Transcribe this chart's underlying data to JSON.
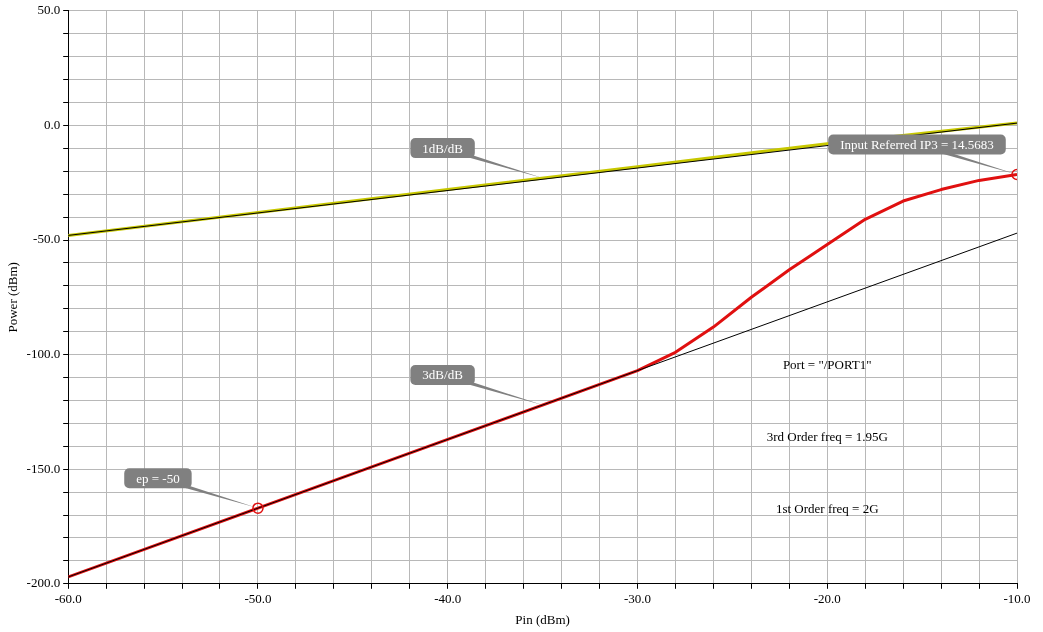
{
  "chart_data": {
    "type": "line",
    "xlabel": "Pin (dBm)",
    "ylabel": "Power (dBm)",
    "xlim": [
      -60,
      -10
    ],
    "ylim": [
      -200,
      50
    ],
    "xticks": [
      {
        "value": -60,
        "label": "-60.0"
      },
      {
        "value": -58,
        "label": null
      },
      {
        "value": -56,
        "label": null
      },
      {
        "value": -54,
        "label": null
      },
      {
        "value": -52,
        "label": null
      },
      {
        "value": -50,
        "label": "-50.0"
      },
      {
        "value": -48,
        "label": null
      },
      {
        "value": -46,
        "label": null
      },
      {
        "value": -44,
        "label": null
      },
      {
        "value": -42,
        "label": null
      },
      {
        "value": -40,
        "label": "-40.0"
      },
      {
        "value": -38,
        "label": null
      },
      {
        "value": -36,
        "label": null
      },
      {
        "value": -34,
        "label": null
      },
      {
        "value": -32,
        "label": null
      },
      {
        "value": -30,
        "label": "-30.0"
      },
      {
        "value": -28,
        "label": null
      },
      {
        "value": -26,
        "label": null
      },
      {
        "value": -24,
        "label": null
      },
      {
        "value": -22,
        "label": null
      },
      {
        "value": -20,
        "label": "-20.0"
      },
      {
        "value": -18,
        "label": null
      },
      {
        "value": -16,
        "label": null
      },
      {
        "value": -14,
        "label": null
      },
      {
        "value": -12,
        "label": null
      },
      {
        "value": -10,
        "label": "-10.0"
      }
    ],
    "yticks": [
      {
        "value": -200,
        "label": "-200.0"
      },
      {
        "value": -190,
        "label": null
      },
      {
        "value": -180,
        "label": null
      },
      {
        "value": -170,
        "label": null
      },
      {
        "value": -160,
        "label": null
      },
      {
        "value": -150,
        "label": "-150.0"
      },
      {
        "value": -140,
        "label": null
      },
      {
        "value": -130,
        "label": null
      },
      {
        "value": -120,
        "label": null
      },
      {
        "value": -110,
        "label": null
      },
      {
        "value": -100,
        "label": "-100.0"
      },
      {
        "value": -90,
        "label": null
      },
      {
        "value": -80,
        "label": null
      },
      {
        "value": -70,
        "label": null
      },
      {
        "value": -60,
        "label": null
      },
      {
        "value": -50,
        "label": "-50.0"
      },
      {
        "value": -40,
        "label": null
      },
      {
        "value": -30,
        "label": null
      },
      {
        "value": -20,
        "label": null
      },
      {
        "value": -10,
        "label": null
      },
      {
        "value": 0,
        "label": "0.0"
      },
      {
        "value": 10,
        "label": null
      },
      {
        "value": 20,
        "label": null
      },
      {
        "value": 30,
        "label": null
      },
      {
        "value": 40,
        "label": null
      },
      {
        "value": 50,
        "label": "50.0"
      }
    ],
    "grid": true,
    "legend": false,
    "marker": "none",
    "line_style": "solid",
    "series": [
      {
        "color": "#c8c800",
        "x": [
          -60,
          -50,
          -40,
          -30,
          -20,
          -10
        ],
        "values": [
          -48,
          -38,
          -28,
          -18,
          -8,
          1
        ]
      },
      {
        "color": "#e01010",
        "x": [
          -60,
          -50,
          -40,
          -30,
          -28,
          -26,
          -24,
          -22,
          -20,
          -18,
          -16,
          -14,
          -12,
          -10
        ],
        "values": [
          -197,
          -167,
          -137,
          -107,
          -99,
          -88,
          -75,
          -63,
          -52,
          -41,
          -33,
          -28,
          -24,
          -21.4
        ]
      },
      {
        "color": "#000000",
        "x": [
          -60,
          -10
        ],
        "values": [
          -48,
          1
        ]
      },
      {
        "color": "#000000",
        "x": [
          -60,
          -10
        ],
        "values": [
          -197,
          -47
        ]
      },
      {
        "type": "scatter",
        "marker": "circle",
        "color": "#e01010",
        "x": [
          -50,
          -10
        ],
        "values": [
          -167,
          -21.4
        ]
      }
    ],
    "annotations": [
      {
        "text": "1dB/dB",
        "x": -35,
        "y": -23
      },
      {
        "text": "3dB/dB",
        "x": -35,
        "y": -122
      },
      {
        "text": "ep = -50",
        "x": -50,
        "y": -167
      },
      {
        "text": "Input Referred IP3 = 14.5683",
        "x": -10,
        "y": -21.4
      },
      "Port = \"/PORT1\"",
      "3rd Order freq = 1.95G",
      "1st Order freq = 2G"
    ]
  }
}
